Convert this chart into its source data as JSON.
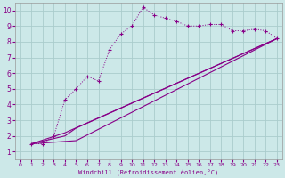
{
  "bg_color": "#cce8e8",
  "line_color": "#880088",
  "grid_color": "#aacccc",
  "xlabel": "Windchill (Refroidissement éolien,°C)",
  "xlim": [
    -0.5,
    23.5
  ],
  "ylim": [
    0.5,
    10.5
  ],
  "xticks": [
    0,
    1,
    2,
    3,
    4,
    5,
    6,
    7,
    8,
    9,
    10,
    11,
    12,
    13,
    14,
    15,
    16,
    17,
    18,
    19,
    20,
    21,
    22,
    23
  ],
  "yticks": [
    1,
    2,
    3,
    4,
    5,
    6,
    7,
    8,
    9,
    10
  ],
  "line1_x": [
    1,
    2,
    3,
    4,
    5,
    6,
    7,
    8,
    9,
    10,
    11,
    12,
    13,
    14,
    15,
    16,
    17,
    18,
    19,
    20,
    21,
    22,
    23
  ],
  "line1_y": [
    1.5,
    1.5,
    2.0,
    4.3,
    5.0,
    5.8,
    5.5,
    7.5,
    8.5,
    9.0,
    10.2,
    9.7,
    9.5,
    9.3,
    9.0,
    9.0,
    9.1,
    9.1,
    8.7,
    8.7,
    8.8,
    8.7,
    8.2
  ],
  "line2_x": [
    1,
    4,
    23
  ],
  "line2_y": [
    1.5,
    2.2,
    8.2
  ],
  "line3_x": [
    1,
    4,
    5,
    23
  ],
  "line3_y": [
    1.5,
    2.0,
    2.5,
    8.2
  ],
  "line4_x": [
    1,
    5,
    23
  ],
  "line4_y": [
    1.5,
    1.7,
    8.2
  ]
}
